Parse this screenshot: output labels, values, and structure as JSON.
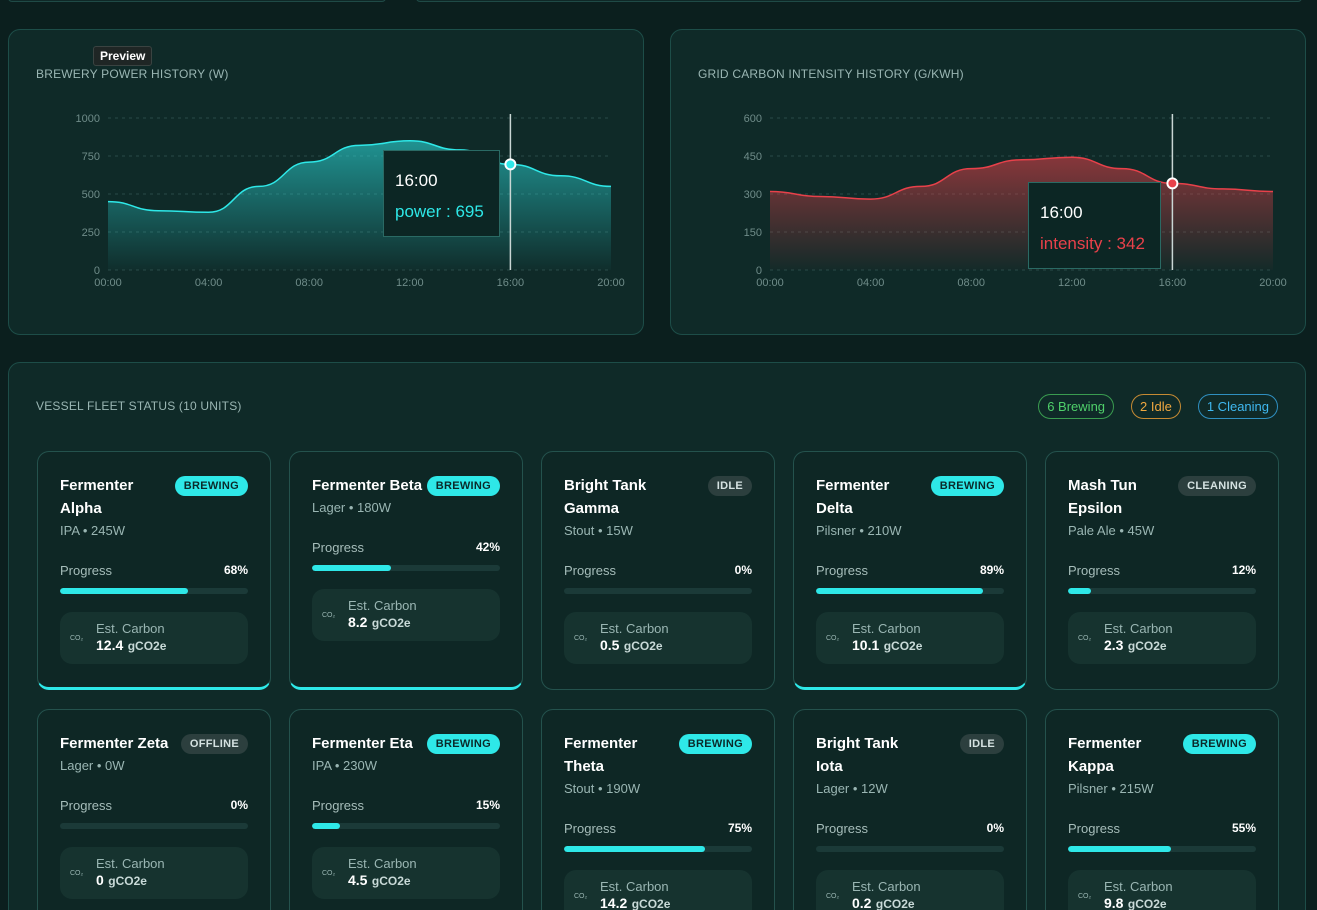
{
  "preview_label": "Preview",
  "power_chart": {
    "chart_data": {
      "type": "area",
      "title": "BREWERY POWER HISTORY (W)",
      "x": [
        "00:00",
        "02:00",
        "04:00",
        "06:00",
        "08:00",
        "10:00",
        "12:00",
        "14:00",
        "16:00",
        "18:00",
        "20:00"
      ],
      "values": [
        450,
        390,
        380,
        550,
        710,
        820,
        850,
        790,
        695,
        620,
        550
      ],
      "yticks": [
        0,
        250,
        500,
        750,
        1000
      ],
      "xticks": [
        "00:00",
        "04:00",
        "08:00",
        "12:00",
        "16:00",
        "20:00"
      ],
      "ylim": [
        0,
        1000
      ],
      "color": "#2ee8e8"
    },
    "tooltip": {
      "time": "16:00",
      "label": "power : 695"
    }
  },
  "carbon_chart": {
    "chart_data": {
      "type": "area",
      "title": "GRID CARBON INTENSITY HISTORY (G/KWH)",
      "x": [
        "00:00",
        "02:00",
        "04:00",
        "06:00",
        "08:00",
        "10:00",
        "12:00",
        "14:00",
        "16:00",
        "18:00",
        "20:00"
      ],
      "values": [
        310,
        290,
        280,
        330,
        400,
        435,
        445,
        400,
        342,
        320,
        310
      ],
      "yticks": [
        0,
        150,
        300,
        450,
        600
      ],
      "xticks": [
        "00:00",
        "04:00",
        "08:00",
        "12:00",
        "16:00",
        "20:00"
      ],
      "ylim": [
        0,
        600
      ],
      "color": "#e8414a"
    },
    "tooltip": {
      "time": "16:00",
      "label": "intensity : 342"
    }
  },
  "fleet": {
    "title": "VESSEL FLEET STATUS (10 UNITS)",
    "badges": {
      "brewing": "6 Brewing",
      "idle": "2 Idle",
      "cleaning": "1 Cleaning"
    },
    "progress_label": "Progress",
    "carbon_label": "Est. Carbon",
    "carbon_unit": "gCO2e",
    "co2_glyph": "CO₂",
    "vessels": [
      {
        "name": "Fermenter Alpha",
        "status": "BREWING",
        "sub": "IPA • 245W",
        "progress": "68%",
        "carbon": "12.4"
      },
      {
        "name": "Fermenter Beta",
        "status": "BREWING",
        "sub": "Lager • 180W",
        "progress": "42%",
        "carbon": "8.2"
      },
      {
        "name": "Bright Tank Gamma",
        "status": "IDLE",
        "sub": "Stout • 15W",
        "progress": "0%",
        "carbon": "0.5"
      },
      {
        "name": "Fermenter Delta",
        "status": "BREWING",
        "sub": "Pilsner • 210W",
        "progress": "89%",
        "carbon": "10.1"
      },
      {
        "name": "Mash Tun Epsilon",
        "status": "CLEANING",
        "sub": "Pale Ale • 45W",
        "progress": "12%",
        "carbon": "2.3"
      },
      {
        "name": "Fermenter Zeta",
        "status": "OFFLINE",
        "sub": "Lager • 0W",
        "progress": "0%",
        "carbon": "0"
      },
      {
        "name": "Fermenter Eta",
        "status": "BREWING",
        "sub": "IPA • 230W",
        "progress": "15%",
        "carbon": "4.5"
      },
      {
        "name": "Fermenter Theta",
        "status": "BREWING",
        "sub": "Stout • 190W",
        "progress": "75%",
        "carbon": "14.2"
      },
      {
        "name": "Bright Tank Iota",
        "status": "IDLE",
        "sub": "Lager • 12W",
        "progress": "0%",
        "carbon": "0.2"
      },
      {
        "name": "Fermenter Kappa",
        "status": "BREWING",
        "sub": "Pilsner • 215W",
        "progress": "55%",
        "carbon": "9.8"
      }
    ]
  }
}
